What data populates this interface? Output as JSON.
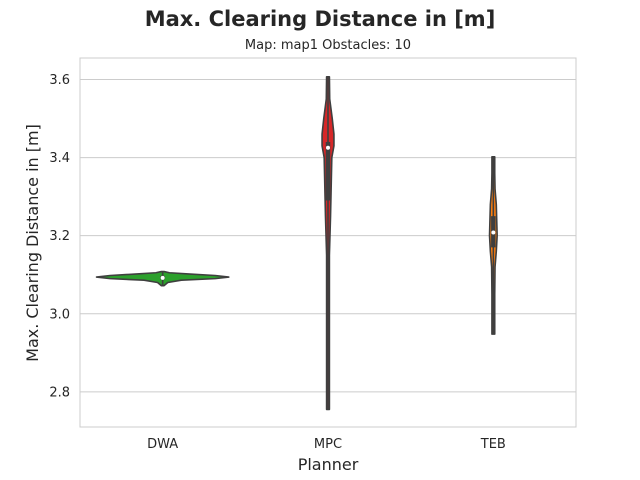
{
  "chart_data": {
    "type": "violin",
    "title": "Max. Clearing Distance in [m]",
    "subtitle": "Map: map1 Obstacles: 10",
    "xlabel": "Planner",
    "ylabel": "Max. Clearing Distance in [m]",
    "categories": [
      "DWA",
      "MPC",
      "TEB"
    ],
    "ylim": [
      2.71,
      3.655
    ],
    "yticks": [
      2.8,
      3.0,
      3.2,
      3.4,
      3.6
    ],
    "grid": true,
    "colors": {
      "DWA": "#2ca02c",
      "MPC": "#d62728",
      "TEB": "#ff7f0e"
    },
    "violins": [
      {
        "category": "DWA",
        "min": 3.072,
        "max": 3.108,
        "q1": 3.088,
        "median": 3.092,
        "q3": 3.097,
        "density": [
          [
            3.072,
            0
          ],
          [
            3.08,
            0.06
          ],
          [
            3.086,
            0.22
          ],
          [
            3.09,
            0.62
          ],
          [
            3.094,
            0.78
          ],
          [
            3.098,
            0.62
          ],
          [
            3.102,
            0.3
          ],
          [
            3.105,
            0.08
          ],
          [
            3.108,
            0
          ]
        ]
      },
      {
        "category": "MPC",
        "min": 2.755,
        "max": 3.607,
        "q1": 3.29,
        "median": 3.425,
        "q3": 3.44,
        "density": [
          [
            2.755,
            0.008
          ],
          [
            3.0,
            0.008
          ],
          [
            3.15,
            0.01
          ],
          [
            3.25,
            0.03
          ],
          [
            3.3,
            0.035
          ],
          [
            3.35,
            0.04
          ],
          [
            3.4,
            0.045
          ],
          [
            3.43,
            0.07
          ],
          [
            3.46,
            0.07
          ],
          [
            3.5,
            0.05
          ],
          [
            3.55,
            0.02
          ],
          [
            3.607,
            0.005
          ]
        ]
      },
      {
        "category": "TEB",
        "min": 2.948,
        "max": 3.402,
        "q1": 3.17,
        "median": 3.208,
        "q3": 3.25,
        "density": [
          [
            2.948,
            0.008
          ],
          [
            3.05,
            0.012
          ],
          [
            3.12,
            0.02
          ],
          [
            3.16,
            0.035
          ],
          [
            3.2,
            0.045
          ],
          [
            3.24,
            0.04
          ],
          [
            3.28,
            0.035
          ],
          [
            3.32,
            0.02
          ],
          [
            3.36,
            0.01
          ],
          [
            3.402,
            0.005
          ]
        ]
      }
    ]
  }
}
